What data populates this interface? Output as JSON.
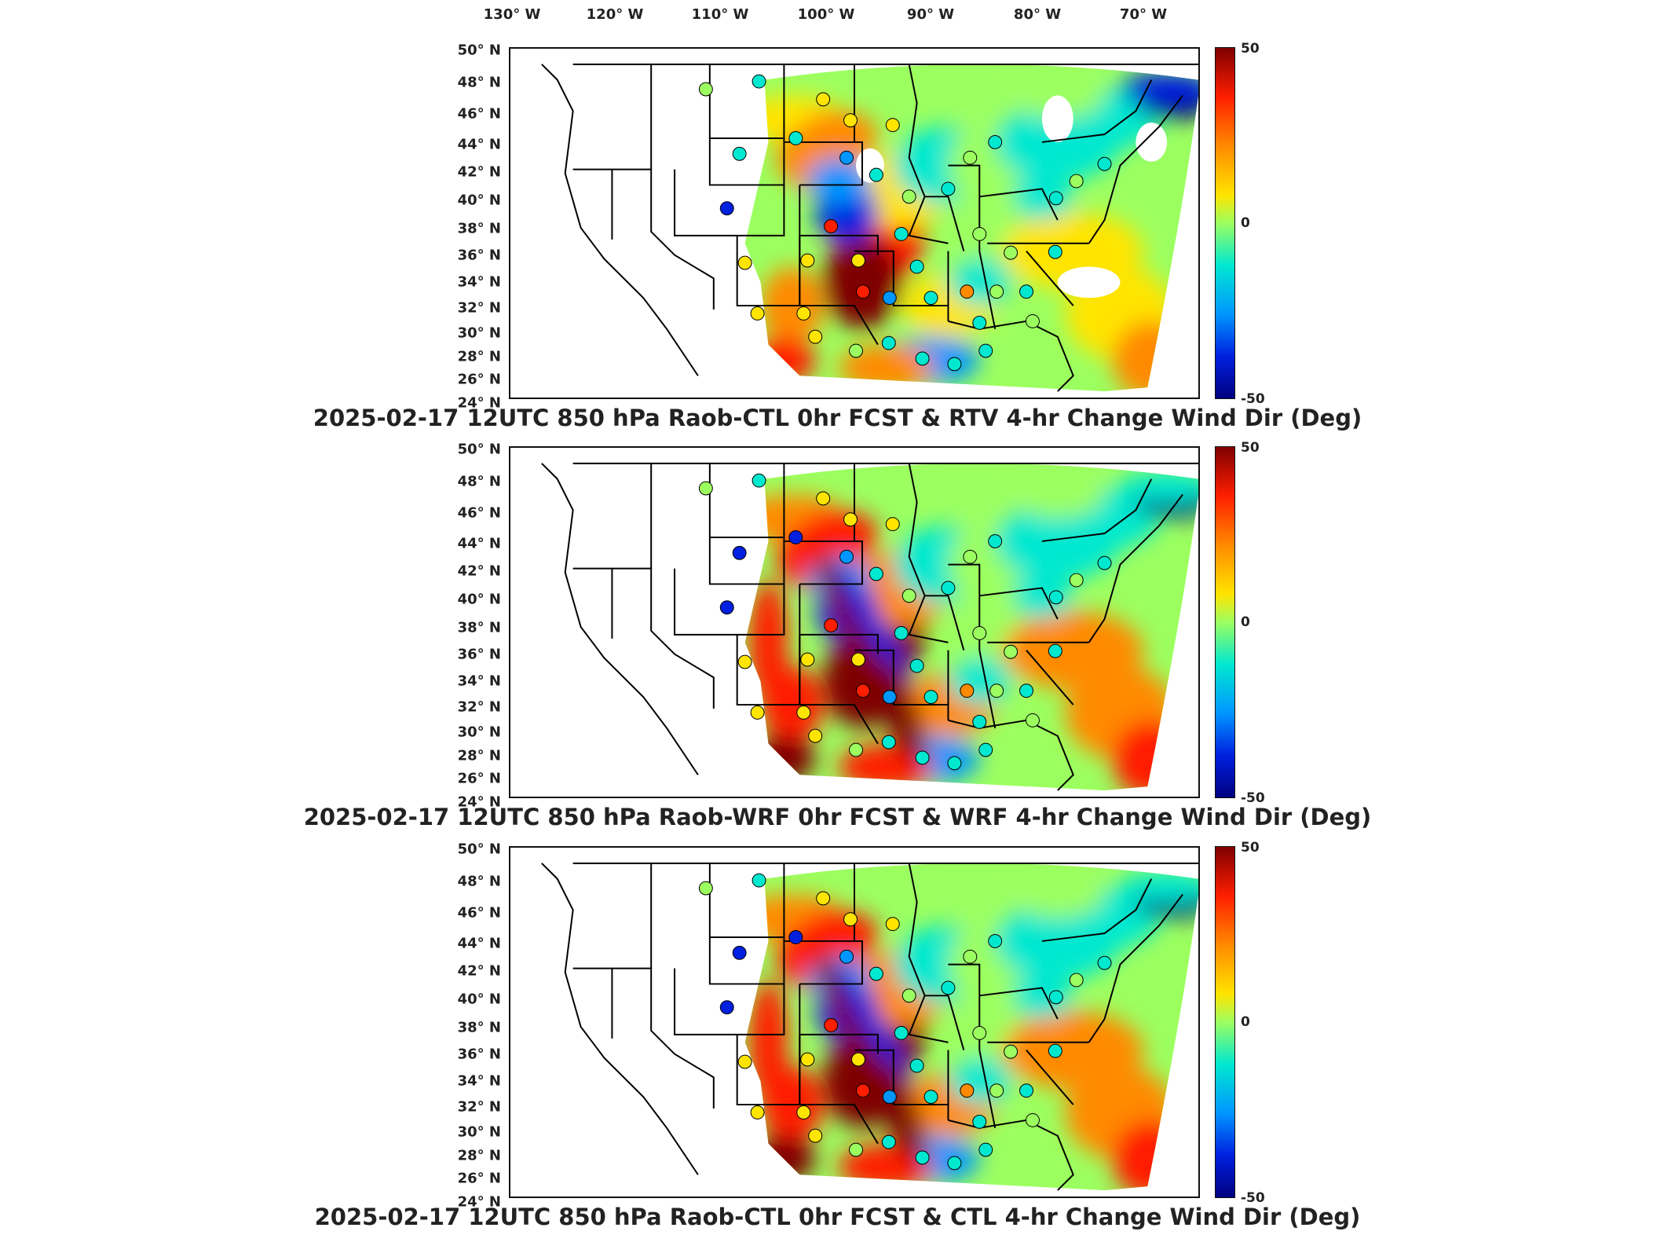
{
  "longitude_labels": [
    "130° W",
    "120° W",
    "110° W",
    "100° W",
    "90° W",
    "80° W",
    "70° W"
  ],
  "latitude_labels": [
    "50° N",
    "48° N",
    "46° N",
    "44° N",
    "42° N",
    "40° N",
    "38° N",
    "36° N",
    "34° N",
    "32° N",
    "30° N",
    "28° N",
    "26° N",
    "24° N"
  ],
  "colorbar": {
    "max_label": "50",
    "mid_label": "0",
    "min_label": "-50",
    "colors": [
      "#7f0000",
      "#ff1e00",
      "#ff8a00",
      "#ffe400",
      "#9cff60",
      "#00e8d0",
      "#0096ff",
      "#0020e0",
      "#00007f"
    ]
  },
  "panels": [
    {
      "title": "2025-02-17 12UTC 850 hPa Raob-CTL 0hr FCST & RTV 4-hr Change Wind Dir (Deg)"
    },
    {
      "title": "2025-02-17 12UTC 850 hPa Raob-WRF 0hr FCST & WRF 4-hr Change Wind Dir (Deg)"
    },
    {
      "title": "2025-02-17 12UTC 850 hPa Raob-CTL 0hr FCST & CTL 4-hr Change Wind Dir (Deg)"
    }
  ]
}
